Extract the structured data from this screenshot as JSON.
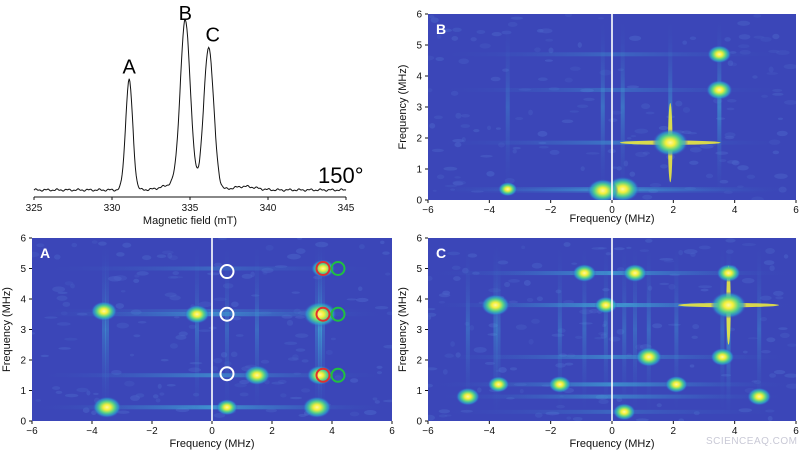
{
  "chart_data": [
    {
      "type": "line",
      "panel": "epr",
      "xlabel": "Magnetic field (mT)",
      "ylabel": "",
      "xlim": [
        325,
        345
      ],
      "x_ticks": [
        "325",
        "330",
        "335",
        "340",
        "345"
      ],
      "annotation": "150°",
      "peaks": [
        {
          "label": "A",
          "x": 331.1,
          "height": 0.62
        },
        {
          "label": "B",
          "x": 334.7,
          "height": 0.92
        },
        {
          "label": "C",
          "x": 336.2,
          "height": 0.8
        }
      ],
      "series": [
        {
          "x": [
            325,
            327,
            329,
            330,
            330.6,
            331.1,
            331.6,
            332.2,
            333,
            333.8,
            334.3,
            334.7,
            335.1,
            335.5,
            335.8,
            336.2,
            336.6,
            337.0,
            338,
            340,
            342,
            345
          ],
          "y": [
            0.0,
            0.0,
            0.01,
            0.02,
            0.2,
            0.62,
            0.2,
            0.02,
            0.05,
            0.25,
            0.6,
            0.92,
            0.6,
            0.37,
            0.55,
            0.8,
            0.5,
            0.1,
            0.04,
            0.02,
            0.01,
            0.0
          ]
        }
      ]
    },
    {
      "type": "heatmap",
      "panel": "B",
      "panel_label": "B",
      "xlabel": "Frequency (MHz)",
      "ylabel": "Frequency (MHz)",
      "xlim": [
        -6,
        6
      ],
      "ylim": [
        0,
        6
      ],
      "x_ticks": [
        "−6",
        "−4",
        "−2",
        "0",
        "2",
        "4",
        "6"
      ],
      "y_ticks": [
        "0",
        "1",
        "2",
        "3",
        "4",
        "5",
        "6"
      ],
      "peaks": [
        {
          "x": 1.9,
          "y": 1.85,
          "intensity": 1.0,
          "cross": true
        },
        {
          "x": 0.35,
          "y": 0.35,
          "intensity": 0.9
        },
        {
          "x": -0.3,
          "y": 0.3,
          "intensity": 0.8
        },
        {
          "x": 3.5,
          "y": 3.55,
          "intensity": 0.6
        },
        {
          "x": 3.5,
          "y": 4.7,
          "intensity": 0.5
        },
        {
          "x": -3.4,
          "y": 0.35,
          "intensity": 0.3
        }
      ]
    },
    {
      "type": "heatmap",
      "panel": "A",
      "panel_label": "A",
      "xlabel": "Frequency (MHz)",
      "ylabel": "Frequency (MHz)",
      "xlim": [
        -6,
        6
      ],
      "ylim": [
        0,
        6
      ],
      "x_ticks": [
        "−6",
        "−4",
        "−2",
        "0",
        "2",
        "4",
        "6"
      ],
      "y_ticks": [
        "0",
        "1",
        "2",
        "3",
        "4",
        "5",
        "6"
      ],
      "peaks": [
        {
          "x": -3.5,
          "y": 0.45,
          "intensity": 0.7
        },
        {
          "x": 3.5,
          "y": 0.45,
          "intensity": 0.7
        },
        {
          "x": -3.6,
          "y": 3.6,
          "intensity": 0.6
        },
        {
          "x": 3.6,
          "y": 3.5,
          "intensity": 0.9
        },
        {
          "x": 1.5,
          "y": 1.5,
          "intensity": 0.6
        },
        {
          "x": -0.5,
          "y": 3.5,
          "intensity": 0.55
        },
        {
          "x": 3.7,
          "y": 5.0,
          "intensity": 0.5
        },
        {
          "x": 3.6,
          "y": 1.5,
          "intensity": 0.6
        },
        {
          "x": 0.5,
          "y": 0.45,
          "intensity": 0.4
        }
      ],
      "circles": [
        {
          "x": 0.5,
          "y": 4.9,
          "color": "#ffffff"
        },
        {
          "x": 0.5,
          "y": 3.5,
          "color": "#ffffff"
        },
        {
          "x": 0.5,
          "y": 1.55,
          "color": "#ffffff"
        },
        {
          "x": 3.7,
          "y": 5.0,
          "color": "#e03030"
        },
        {
          "x": 3.7,
          "y": 3.5,
          "color": "#e03030"
        },
        {
          "x": 3.7,
          "y": 1.5,
          "color": "#e03030"
        },
        {
          "x": 4.2,
          "y": 5.0,
          "color": "#20c040"
        },
        {
          "x": 4.2,
          "y": 3.5,
          "color": "#20c040"
        },
        {
          "x": 4.2,
          "y": 1.5,
          "color": "#20c040"
        }
      ]
    },
    {
      "type": "heatmap",
      "panel": "C",
      "panel_label": "C",
      "xlabel": "Frequency (MHz)",
      "ylabel": "Frequency (MHz)",
      "xlim": [
        -6,
        6
      ],
      "ylim": [
        0,
        6
      ],
      "x_ticks": [
        "−6",
        "−4",
        "−2",
        "0",
        "2",
        "4",
        "6"
      ],
      "y_ticks": [
        "0",
        "1",
        "2",
        "3",
        "4",
        "5",
        "6"
      ],
      "peaks": [
        {
          "x": 3.8,
          "y": 3.8,
          "intensity": 1.0,
          "cross": true
        },
        {
          "x": -3.8,
          "y": 3.8,
          "intensity": 0.7
        },
        {
          "x": 1.2,
          "y": 2.1,
          "intensity": 0.6
        },
        {
          "x": 3.6,
          "y": 2.1,
          "intensity": 0.5
        },
        {
          "x": -0.9,
          "y": 4.85,
          "intensity": 0.5
        },
        {
          "x": 0.75,
          "y": 4.85,
          "intensity": 0.5
        },
        {
          "x": 3.8,
          "y": 4.85,
          "intensity": 0.5
        },
        {
          "x": -4.7,
          "y": 0.8,
          "intensity": 0.5
        },
        {
          "x": 4.8,
          "y": 0.8,
          "intensity": 0.5
        },
        {
          "x": -1.7,
          "y": 1.2,
          "intensity": 0.45
        },
        {
          "x": 2.1,
          "y": 1.2,
          "intensity": 0.45
        },
        {
          "x": -0.2,
          "y": 3.8,
          "intensity": 0.45
        },
        {
          "x": 0.4,
          "y": 0.3,
          "intensity": 0.45
        },
        {
          "x": -3.7,
          "y": 1.2,
          "intensity": 0.4
        }
      ]
    }
  ],
  "watermark": "SCIENCEAQ.COM",
  "colors": {
    "background": "#ffffff",
    "map_bg": "#3b46b8",
    "map_mid": "#2bb3c8",
    "map_high": "#f4f03a",
    "zero_line": "#ffffff",
    "spectrum_line": "#111111"
  }
}
